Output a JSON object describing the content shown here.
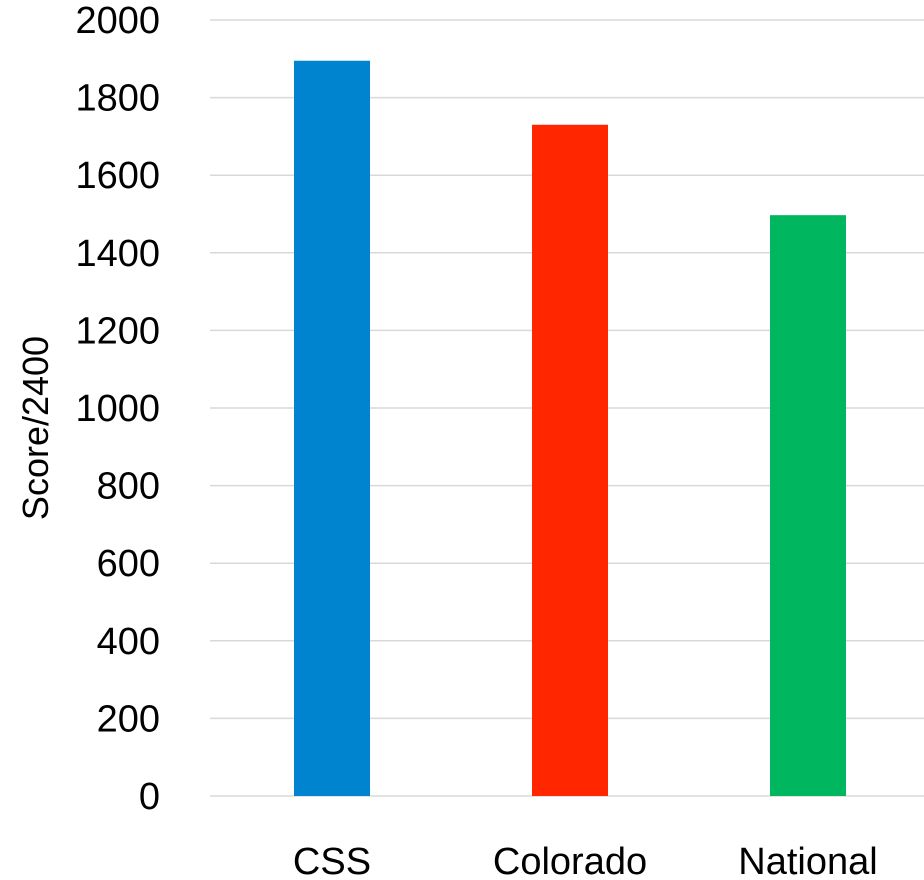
{
  "chart_data": {
    "type": "bar",
    "title": "",
    "xlabel": "",
    "ylabel": "Score/2400",
    "categories": [
      "CSS",
      "Colorado",
      "National"
    ],
    "values": [
      1895,
      1730,
      1497
    ],
    "colors": [
      "#0084CF",
      "#FF2600",
      "#00B760"
    ],
    "ylim": [
      0,
      2000
    ],
    "yticks": [
      0,
      200,
      400,
      600,
      800,
      1000,
      1200,
      1400,
      1600,
      1800,
      2000
    ],
    "grid": true,
    "legend": "none"
  }
}
